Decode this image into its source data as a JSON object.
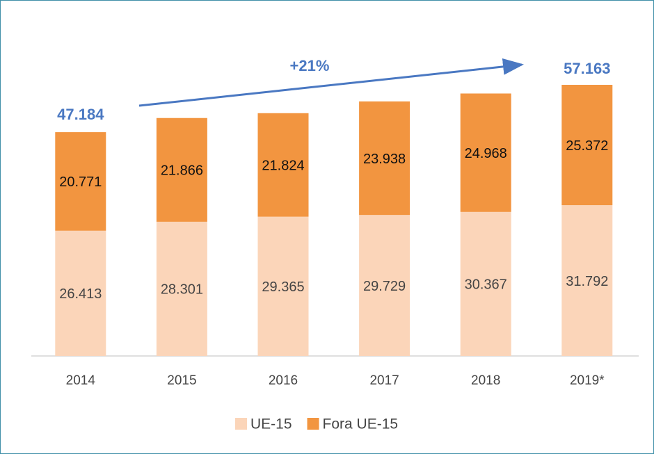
{
  "chart_data": {
    "type": "stacked_bar",
    "categories": [
      "2014",
      "2015",
      "2016",
      "2017",
      "2018",
      "2019*"
    ],
    "series": [
      {
        "name": "UE-15",
        "color": "#fbd5b9",
        "values": [
          26413,
          28301,
          29365,
          29729,
          30367,
          31792
        ],
        "value_labels": [
          "26.413",
          "28.301",
          "29.365",
          "29.729",
          "30.367",
          "31.792"
        ]
      },
      {
        "name": "Fora UE-15",
        "color": "#f29540",
        "values": [
          20771,
          21866,
          21824,
          23938,
          24968,
          25372
        ],
        "value_labels": [
          "20.771",
          "21.866",
          "21.824",
          "23.938",
          "24.968",
          "25.372"
        ]
      }
    ],
    "annotations": {
      "start_total": "47.184",
      "end_total": "57.163",
      "growth": "+21%"
    },
    "legend": "bottom"
  }
}
